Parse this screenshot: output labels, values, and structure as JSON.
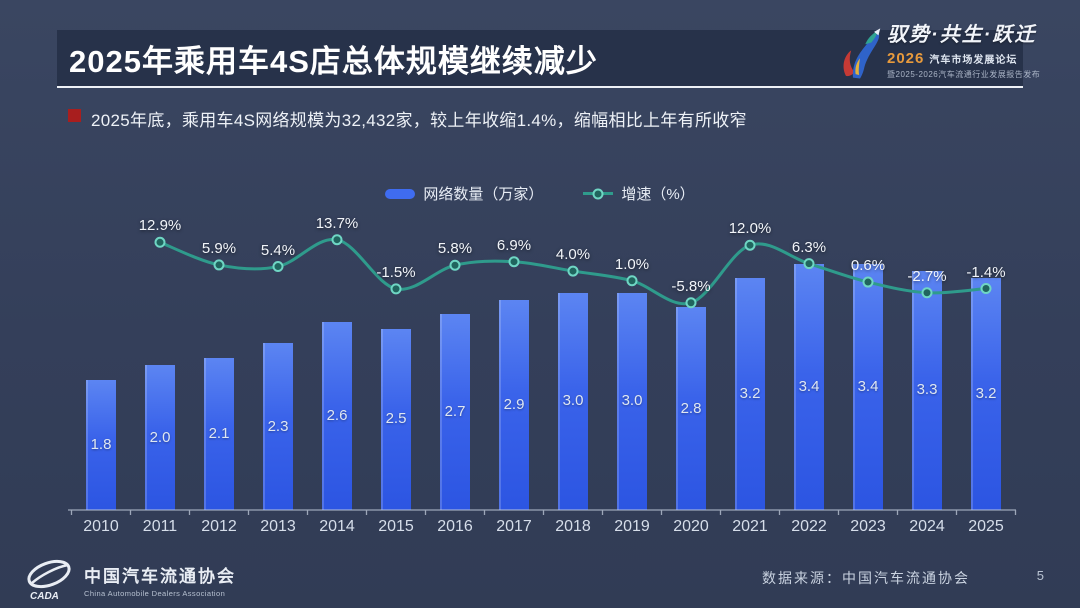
{
  "slide": {
    "title": "2025年乘用车4S店总体规模继续减少",
    "bullet_text": "2025年底，乘用车4S网络规模为32,432家，较上年收缩1.4%，缩幅相比上年有所收窄",
    "page_number": "5"
  },
  "event_logo": {
    "slogan": "驭势·共生·跃迁",
    "event_year": "2026",
    "event_name": "汽车市场发展论坛",
    "event_subtitle": "暨2025-2026汽车流通行业发展报告发布"
  },
  "legend": {
    "bars_label": "网络数量（万家）",
    "line_label": "增速（%）"
  },
  "footer": {
    "org_name_cn": "中国汽车流通协会",
    "org_name_en": "China Automobile Dealers Association",
    "org_abbr": "CADA",
    "data_source": "数据来源：中国汽车流通协会"
  },
  "colors": {
    "background": "#343f5a",
    "header_box": "#27324a",
    "bar_top": "#5c85f2",
    "bar_bottom": "#2c55e2",
    "legend_bar": "#3f6cf0",
    "line": "#2f9b8c",
    "marker_fill": "#20655e",
    "marker_stroke": "#6fd6c4",
    "bullet_red": "#a81e1e",
    "event_year_orange": "#e89a3c",
    "axis": "#c2cbd9"
  },
  "chart_data": {
    "type": "bar",
    "subtype": "bar-line-combo",
    "categories": [
      "2010",
      "2011",
      "2012",
      "2013",
      "2014",
      "2015",
      "2016",
      "2017",
      "2018",
      "2019",
      "2020",
      "2021",
      "2022",
      "2023",
      "2024",
      "2025"
    ],
    "series": [
      {
        "name": "网络数量（万家）",
        "type": "bar",
        "unit": "万家",
        "values": [
          1.8,
          2.0,
          2.1,
          2.3,
          2.6,
          2.5,
          2.7,
          2.9,
          3.0,
          3.0,
          2.8,
          3.2,
          3.4,
          3.4,
          3.3,
          3.2
        ]
      },
      {
        "name": "增速（%）",
        "type": "line",
        "unit": "%",
        "values": [
          null,
          12.9,
          5.9,
          5.4,
          13.7,
          -1.5,
          5.8,
          6.9,
          4.0,
          1.0,
          -5.8,
          12.0,
          6.3,
          0.6,
          -2.7,
          -1.4
        ]
      }
    ],
    "title": "",
    "xlabel": "",
    "ylabel": "",
    "legend_position": "top-center",
    "grid": false,
    "value_labels": true
  }
}
